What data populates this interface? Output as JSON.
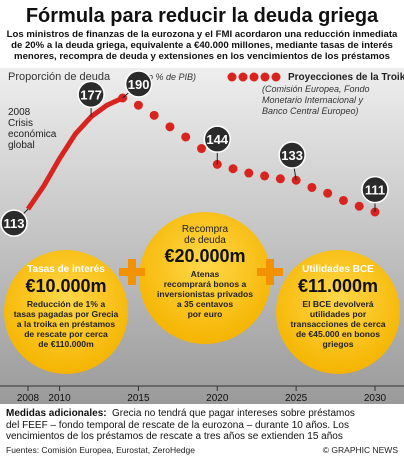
{
  "header": {
    "title": "Fórmula para reducir la deuda griega",
    "subtitle": [
      "Los ministros de finanzas de la eurozona y el FMI acordaron una reducción inmediata",
      "de 20% a la deuda griega, equivalente a €40.000 millones, mediante tasas de interés",
      "menores, recompra de deuda y extensiones en los vencimientos de los préstamos"
    ]
  },
  "chart_data": {
    "type": "line",
    "annotation": [
      "2008",
      "Crisis",
      "económica",
      "global"
    ],
    "xlim": [
      2008,
      2030
    ],
    "xticks": [
      2008,
      2010,
      2015,
      2020,
      2025,
      2030
    ],
    "series": [
      {
        "name": "Proporción de deuda",
        "note": "(como % de PIB)",
        "color": "#d9231e",
        "style": "solid",
        "x": [
          2008,
          2009,
          2010,
          2011,
          2012,
          2013,
          2014
        ],
        "values": [
          113,
          129,
          148,
          165,
          177,
          185,
          190
        ]
      },
      {
        "name": "Proyecciones de la Troika",
        "note": [
          "(Comisión Europea, Fondo",
          "Monetario Internacional y",
          "Banco Central Europeo)"
        ],
        "color": "#d9231e",
        "style": "dots",
        "x": [
          2014,
          2015,
          2016,
          2017,
          2018,
          2019,
          2020,
          2021,
          2022,
          2023,
          2024,
          2025,
          2026,
          2027,
          2028,
          2029,
          2030
        ],
        "values": [
          190,
          185,
          178,
          170,
          163,
          155,
          144,
          141,
          138,
          136,
          134,
          133,
          128,
          124,
          119,
          115,
          111
        ]
      }
    ]
  },
  "measures": [
    {
      "title": "Tasas de interés",
      "amount": "€10.000m",
      "text": [
        "Reducción de 1% a",
        "tasas pagadas por Grecia",
        "a la troika en préstamos",
        "de rescate por cerca",
        "de €110.000m"
      ]
    },
    {
      "title": [
        "Recompra",
        "de deuda"
      ],
      "amount": "€20.000m",
      "text": [
        "Atenas",
        "recomprará bonos a",
        "inversionistas privados",
        "a 35 centavos",
        "por euro"
      ]
    },
    {
      "title": "Utilidades BCE",
      "amount": "€11.000m",
      "text": [
        "El BCE devolverá",
        "utilidades por",
        "transacciones de cerca",
        "de €45.000 en bonos",
        "griegos"
      ]
    }
  ],
  "footer": {
    "label": "Medidas adicionales:",
    "text": [
      "Grecia no tendrá que pagar intereses sobre préstamos",
      "del FEEF – fondo temporal de rescate de la eurozona – durante 10 años. Los",
      "vencimientos de los préstamos de rescate a tres años se extienden 15 años"
    ],
    "sources": "Fuentes: Comisión Europea, Eurostat, ZeroHedge",
    "credit": "© GRAPHIC NEWS"
  }
}
